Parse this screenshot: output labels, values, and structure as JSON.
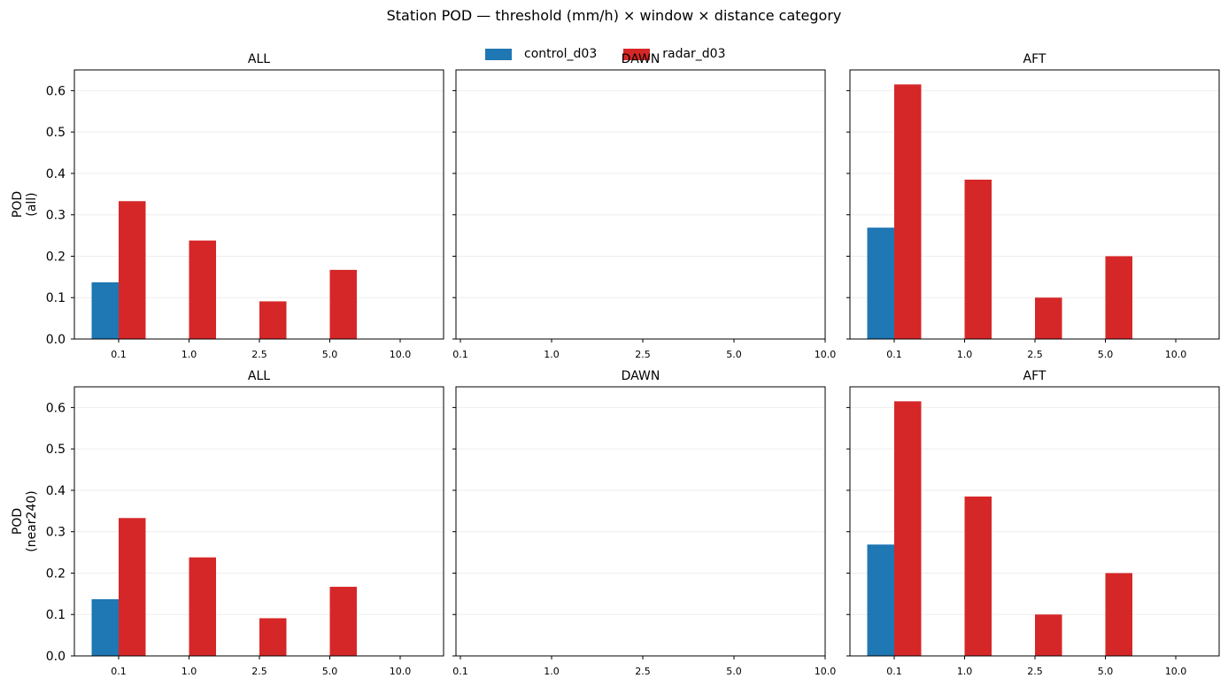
{
  "suptitle": "Station POD — threshold (mm/h) × window × distance category",
  "legend": [
    {
      "name": "control_d03",
      "color": "#1f77b4"
    },
    {
      "name": "radar_d03",
      "color": "#d62728"
    }
  ],
  "chart_data": [
    {
      "type": "bar",
      "title": "ALL",
      "ylabel": "POD\n(all)",
      "categories": [
        "0.1",
        "1.0",
        "2.5",
        "5.0",
        "10.0"
      ],
      "ylim": [
        0,
        0.65
      ],
      "yticks": [
        "0.0",
        "0.1",
        "0.2",
        "0.3",
        "0.4",
        "0.5",
        "0.6"
      ],
      "series": [
        {
          "name": "control_d03",
          "values": [
            0.137,
            0,
            0,
            0,
            0
          ]
        },
        {
          "name": "radar_d03",
          "values": [
            0.333,
            0.238,
            0.091,
            0.167,
            0
          ]
        }
      ]
    },
    {
      "type": "bar",
      "title": "DAWN",
      "ylabel": "",
      "categories": [
        "0.1",
        "1.0",
        "2.5",
        "5.0",
        "10.0"
      ],
      "ylim": [
        0,
        0.65
      ],
      "empty": true,
      "series": []
    },
    {
      "type": "bar",
      "title": "AFT",
      "ylabel": "",
      "categories": [
        "0.1",
        "1.0",
        "2.5",
        "5.0",
        "10.0"
      ],
      "ylim": [
        0,
        0.65
      ],
      "series": [
        {
          "name": "control_d03",
          "values": [
            0.269,
            0,
            0,
            0,
            0
          ]
        },
        {
          "name": "radar_d03",
          "values": [
            0.615,
            0.385,
            0.1,
            0.2,
            0
          ]
        }
      ]
    },
    {
      "type": "bar",
      "title": "ALL",
      "ylabel": "POD\n(near240)",
      "categories": [
        "0.1",
        "1.0",
        "2.5",
        "5.0",
        "10.0"
      ],
      "ylim": [
        0,
        0.65
      ],
      "yticks": [
        "0.0",
        "0.1",
        "0.2",
        "0.3",
        "0.4",
        "0.5",
        "0.6"
      ],
      "series": [
        {
          "name": "control_d03",
          "values": [
            0.137,
            0,
            0,
            0,
            0
          ]
        },
        {
          "name": "radar_d03",
          "values": [
            0.333,
            0.238,
            0.091,
            0.167,
            0
          ]
        }
      ]
    },
    {
      "type": "bar",
      "title": "DAWN",
      "ylabel": "",
      "categories": [
        "0.1",
        "1.0",
        "2.5",
        "5.0",
        "10.0"
      ],
      "ylim": [
        0,
        0.65
      ],
      "empty": true,
      "series": []
    },
    {
      "type": "bar",
      "title": "AFT",
      "ylabel": "",
      "categories": [
        "0.1",
        "1.0",
        "2.5",
        "5.0",
        "10.0"
      ],
      "ylim": [
        0,
        0.65
      ],
      "series": [
        {
          "name": "control_d03",
          "values": [
            0.269,
            0,
            0,
            0,
            0
          ]
        },
        {
          "name": "radar_d03",
          "values": [
            0.615,
            0.385,
            0.1,
            0.2,
            0
          ]
        }
      ]
    }
  ]
}
